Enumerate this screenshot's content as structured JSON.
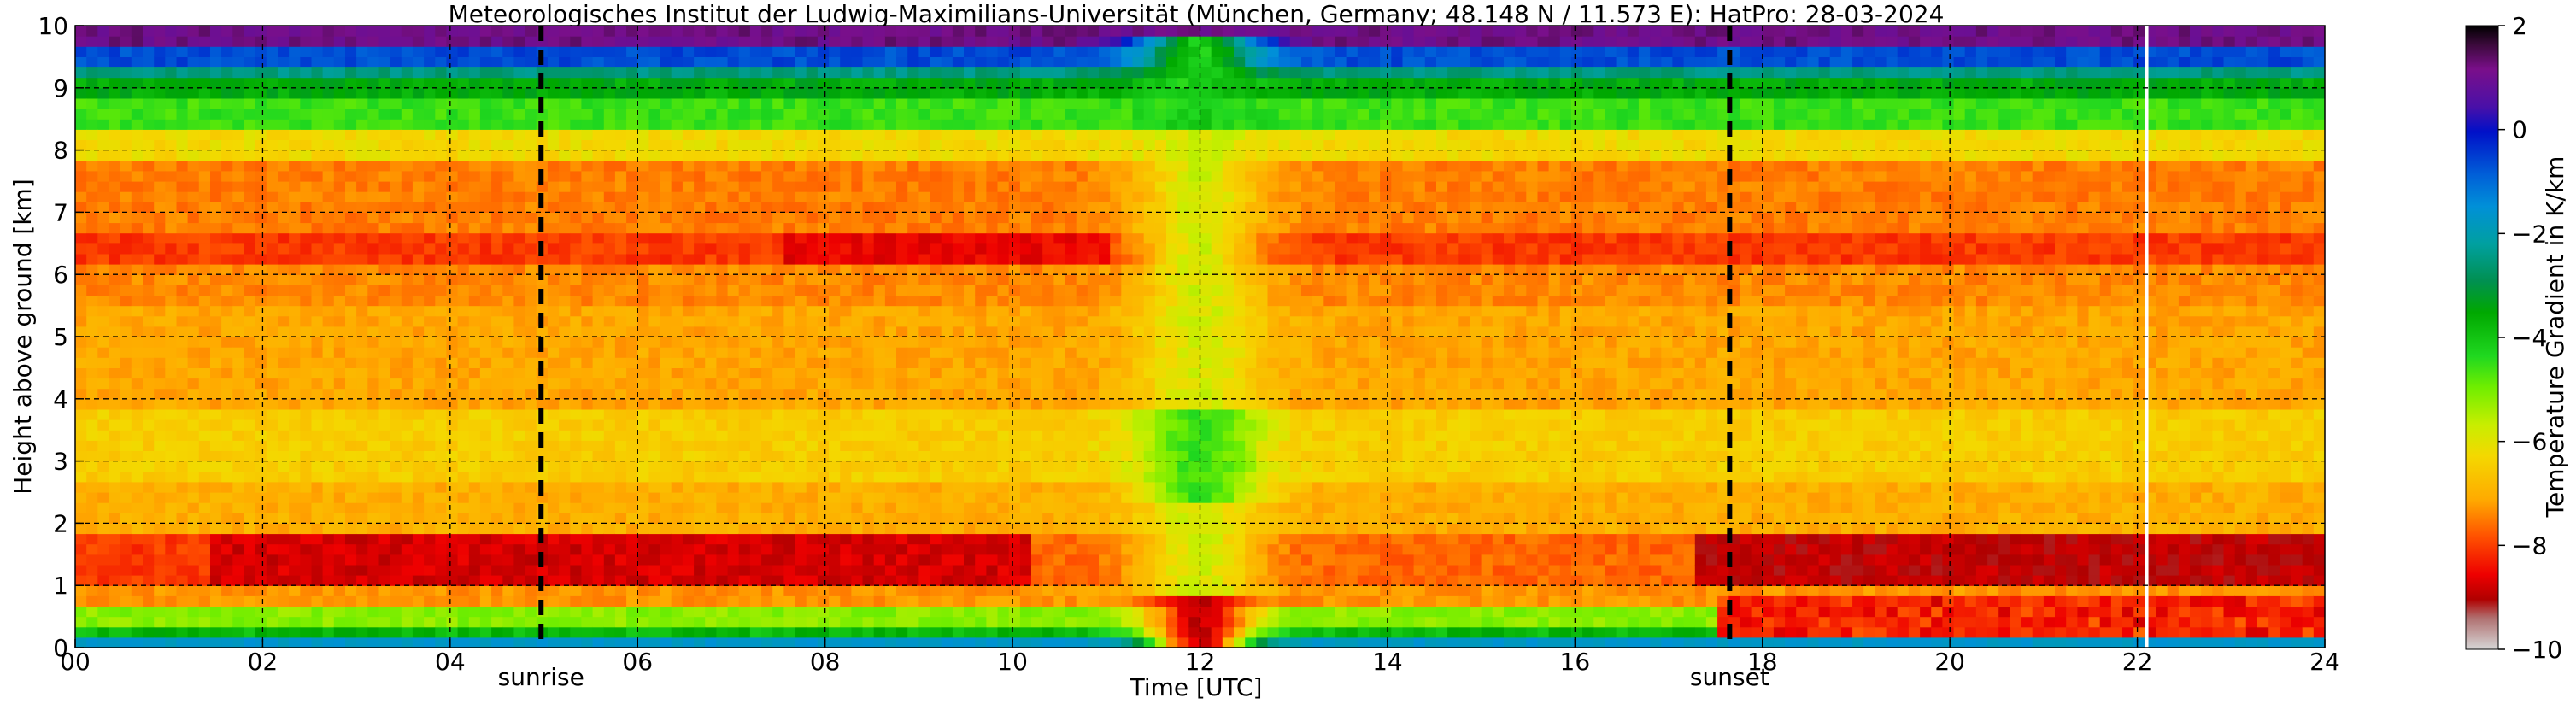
{
  "chart_data": {
    "type": "heatmap",
    "title": "Meteorologisches Institut der Ludwig-Maximilians-Universität (München, Germany; 48.148 N / 11.573 E):    HatPro: 28-03-2024",
    "xlabel": "Time [UTC]",
    "ylabel": "Height above ground [km]",
    "colorbar_label": "Temperature Gradient in K/km",
    "xlim": [
      0,
      24
    ],
    "ylim": [
      0,
      10
    ],
    "clim": [
      -10,
      2
    ],
    "x_ticks": [
      0,
      2,
      4,
      6,
      8,
      10,
      12,
      14,
      16,
      18,
      20,
      22,
      24
    ],
    "x_tick_labels": [
      "00",
      "02",
      "04",
      "06",
      "08",
      "10",
      "12",
      "14",
      "16",
      "18",
      "20",
      "22",
      "24"
    ],
    "y_ticks": [
      0,
      1,
      2,
      3,
      4,
      5,
      6,
      7,
      8,
      9,
      10
    ],
    "y_tick_labels": [
      "0",
      "1",
      "2",
      "3",
      "4",
      "5",
      "6",
      "7",
      "8",
      "9",
      "10"
    ],
    "colorbar_ticks": [
      2,
      0,
      -2,
      -4,
      -6,
      -8,
      -10
    ],
    "colorbar_tick_labels": [
      "2",
      "0",
      "−2",
      "−4",
      "−6",
      "−8",
      "−10"
    ],
    "grid": true,
    "events": [
      {
        "label": "sunrise",
        "time": 4.97
      },
      {
        "label": "sunset",
        "time": 17.65
      }
    ],
    "gap_time": 22.1
  }
}
